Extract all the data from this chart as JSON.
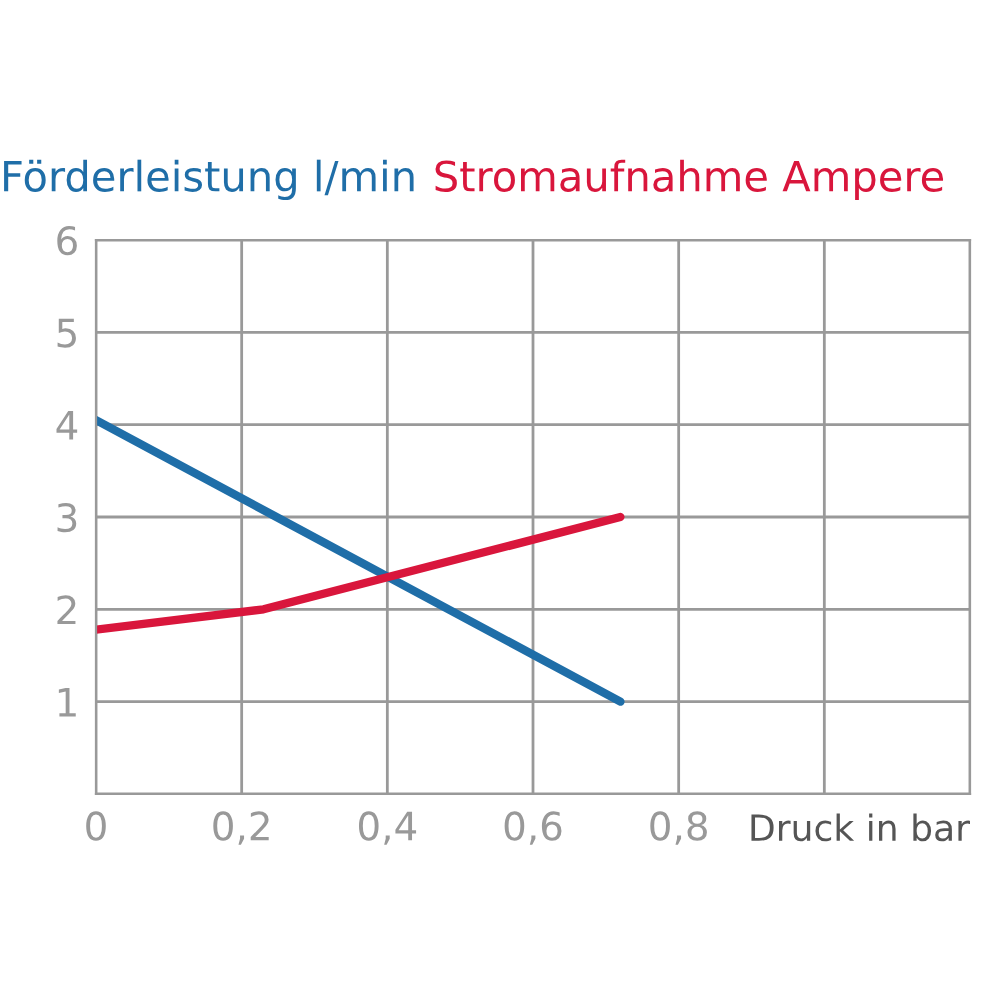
{
  "chart_data": {
    "type": "line",
    "xlabel": "Druck in bar",
    "series": [
      {
        "name": "Förderleistung l/min",
        "color": "#1f6ea8",
        "x": [
          0,
          0.72
        ],
        "values": [
          4.05,
          1.0
        ]
      },
      {
        "name": "Stromaufnahme Ampere",
        "color": "#d9163c",
        "x": [
          0,
          0.23,
          0.72
        ],
        "values": [
          1.78,
          2.0,
          3.0
        ]
      }
    ],
    "xlim": [
      0,
      1.2
    ],
    "ylim": [
      0,
      6
    ],
    "xticks": [
      0,
      {
        "value": 0.2,
        "label": "0,2"
      },
      {
        "value": 0.4,
        "label": "0,4"
      },
      {
        "value": 0.6,
        "label": "0,6"
      },
      {
        "value": 0.8,
        "label": "0,8"
      },
      {
        "value": 1.0,
        "label": null
      },
      {
        "value": 1.2,
        "label": null
      }
    ],
    "yticks": [
      {
        "value": 0,
        "label": null
      },
      1,
      2,
      3,
      4,
      5,
      6
    ],
    "grid": true,
    "legend": false,
    "marker": "none",
    "line_style": "solid"
  }
}
